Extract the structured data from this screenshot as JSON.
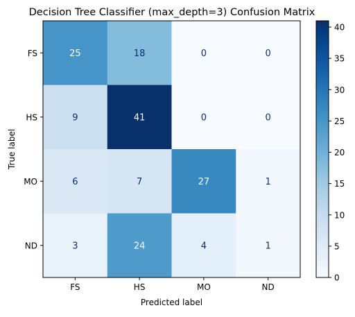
{
  "chart_data": {
    "type": "heatmap",
    "title": "Decision Tree Classifier (max_depth=3) Confusion Matrix",
    "xlabel": "Predicted label",
    "ylabel": "True label",
    "x_categories": [
      "FS",
      "HS",
      "MO",
      "ND"
    ],
    "y_categories": [
      "FS",
      "HS",
      "MO",
      "ND"
    ],
    "values": [
      [
        25,
        18,
        0,
        0
      ],
      [
        9,
        41,
        0,
        0
      ],
      [
        6,
        7,
        27,
        1
      ],
      [
        3,
        24,
        4,
        1
      ]
    ],
    "colormap": "Blues",
    "colorbar": {
      "min": 0,
      "max": 41,
      "ticks": [
        0,
        5,
        10,
        15,
        20,
        25,
        30,
        35,
        40
      ]
    },
    "text_colors": {
      "dark": "#08306b",
      "light": "#f7fbff"
    }
  }
}
